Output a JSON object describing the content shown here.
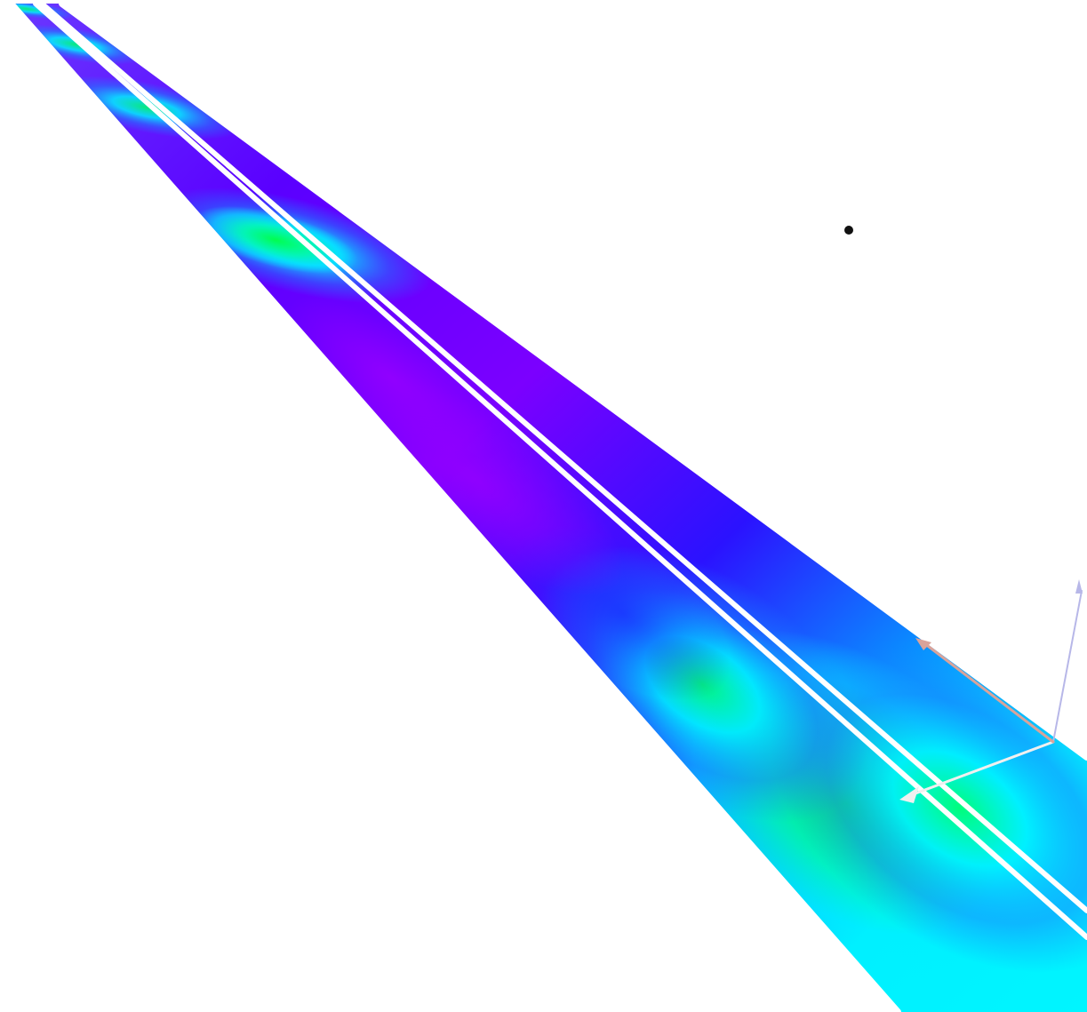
{
  "scene": {
    "background_color": "#ffffff",
    "surface": {
      "kind": "road-heatmap-surface",
      "heat_colors": [
        "#8a00ff",
        "#5a00ff",
        "#1a2bff",
        "#0a8dff",
        "#00f0ff",
        "#00ff4a"
      ],
      "edge_line_color": "#ffffff",
      "lane_line_color": "#ffffff",
      "lane_lines": 2
    },
    "gizmo": {
      "kind": "transform-gizmo",
      "axis_colors": {
        "x": "#f0f0f0",
        "y": "#d9a39a",
        "z": "#b7b7e8"
      }
    },
    "point_marker": {
      "kind": "scene-point-marker",
      "color": "#111111"
    }
  }
}
